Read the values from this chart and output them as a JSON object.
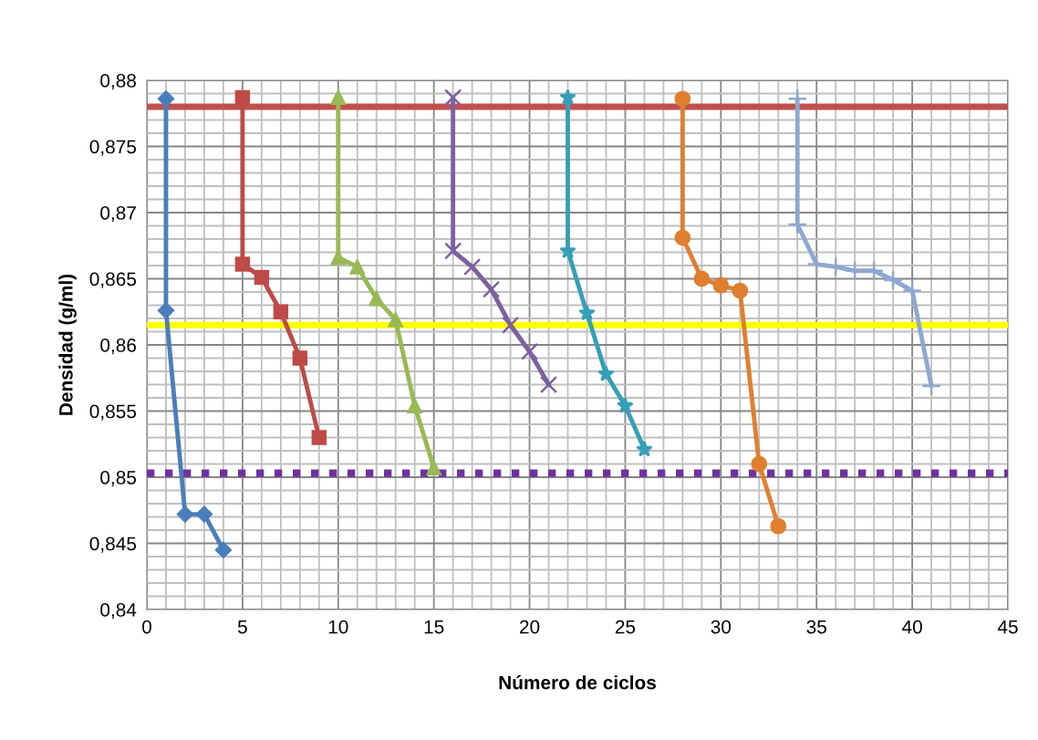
{
  "chart_data": {
    "type": "line",
    "xlabel": "Número de ciclos",
    "ylabel": "Densidad (g/ml)",
    "xlim": [
      0,
      45
    ],
    "xticks": [
      0,
      5,
      10,
      15,
      20,
      25,
      30,
      35,
      40,
      45
    ],
    "ylim": [
      0.84,
      0.88
    ],
    "yticks": [
      {
        "value": 0.84,
        "label": "0,84"
      },
      {
        "value": 0.845,
        "label": "0,845"
      },
      {
        "value": 0.85,
        "label": "0,85"
      },
      {
        "value": 0.855,
        "label": "0,855"
      },
      {
        "value": 0.86,
        "label": "0,86"
      },
      {
        "value": 0.865,
        "label": "0,865"
      },
      {
        "value": 0.87,
        "label": "0,87"
      },
      {
        "value": 0.875,
        "label": "0,875"
      },
      {
        "value": 0.88,
        "label": "0,88"
      }
    ],
    "grid": true,
    "legend": false,
    "series": [
      {
        "color": "#4a7ebb",
        "marker": "diamond",
        "x": [
          1,
          1,
          2,
          3,
          4
        ],
        "values": [
          0.8786,
          0.8626,
          0.8472,
          0.8472,
          0.8445
        ]
      },
      {
        "color": "#be4b48",
        "marker": "square",
        "x": [
          5,
          5,
          6,
          7,
          8,
          9
        ],
        "values": [
          0.8787,
          0.8661,
          0.8651,
          0.8625,
          0.859,
          0.853
        ]
      },
      {
        "color": "#98b954",
        "marker": "triangle",
        "x": [
          10,
          10,
          11,
          12,
          13,
          14,
          15
        ],
        "values": [
          0.8787,
          0.8666,
          0.8659,
          0.8635,
          0.8619,
          0.8554,
          0.8507
        ]
      },
      {
        "color": "#7d60a0",
        "marker": "cross",
        "x": [
          16,
          16,
          17,
          18,
          19,
          20,
          21
        ],
        "values": [
          0.8787,
          0.8671,
          0.8659,
          0.8642,
          0.8615,
          0.8595,
          0.857
        ]
      },
      {
        "color": "#35a0b8",
        "marker": "star",
        "x": [
          22,
          22,
          23,
          24,
          25,
          26
        ],
        "values": [
          0.8787,
          0.8671,
          0.8624,
          0.8578,
          0.8554,
          0.8521
        ]
      },
      {
        "color": "#e07f30",
        "marker": "circle",
        "x": [
          28,
          28,
          29,
          30,
          31,
          32,
          33
        ],
        "values": [
          0.8786,
          0.8681,
          0.865,
          0.8645,
          0.8641,
          0.851,
          0.8463
        ]
      },
      {
        "color": "#8ea8d0",
        "marker": "plus",
        "x": [
          34,
          34,
          35,
          36,
          37,
          38,
          39,
          40,
          41
        ],
        "values": [
          0.8786,
          0.8691,
          0.8661,
          0.8659,
          0.8656,
          0.8656,
          0.8649,
          0.8641,
          0.8569
        ]
      }
    ],
    "ref_lines": [
      {
        "axis": "y",
        "value": 0.878,
        "color": "#c0504d",
        "line_style": "solid"
      },
      {
        "axis": "y",
        "value": 0.8615,
        "color": "#ffff00",
        "line_style": "solid"
      },
      {
        "axis": "y",
        "value": 0.8503,
        "color": "#7030a0",
        "line_style": "dotted"
      }
    ]
  }
}
